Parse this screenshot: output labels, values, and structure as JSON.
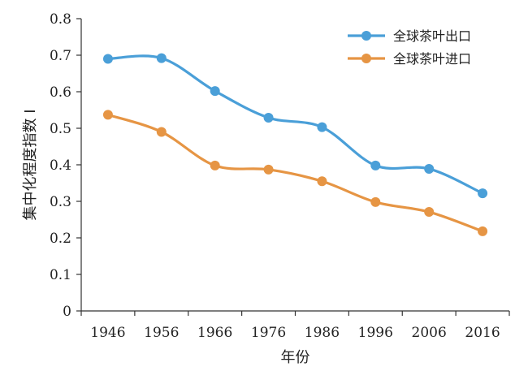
{
  "chart_data": {
    "type": "line",
    "title": "",
    "xlabel": "年份",
    "ylabel": "集中化程度指数 I",
    "categories": [
      "1946",
      "1956",
      "1966",
      "1976",
      "1986",
      "1996",
      "2006",
      "2016"
    ],
    "ylim": [
      0,
      0.8
    ],
    "yticks": [
      "0",
      "0.1",
      "0.2",
      "0.3",
      "0.4",
      "0.5",
      "0.6",
      "0.7",
      "0.8"
    ],
    "grid": false,
    "legend_position": "top-right",
    "smooth": true,
    "series": [
      {
        "name": "全球茶叶出口",
        "color": "#4a9fd8",
        "values": [
          0.69,
          0.692,
          0.602,
          0.529,
          0.503,
          0.398,
          0.389,
          0.322
        ]
      },
      {
        "name": "全球茶叶进口",
        "color": "#e69544",
        "values": [
          0.537,
          0.49,
          0.398,
          0.387,
          0.355,
          0.298,
          0.271,
          0.218
        ]
      }
    ]
  }
}
